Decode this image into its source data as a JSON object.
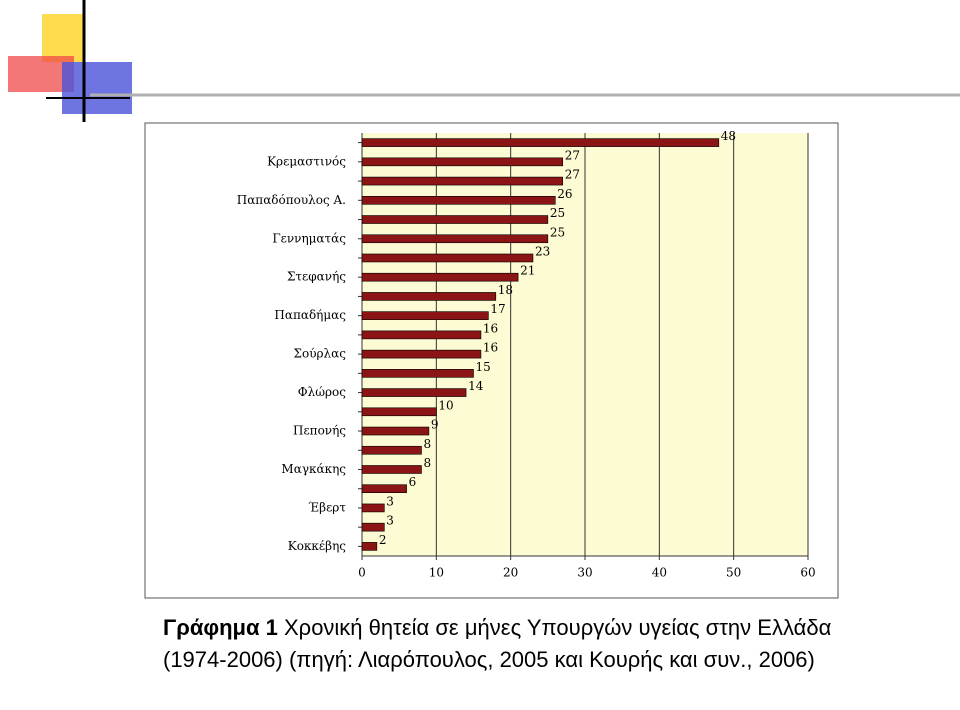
{
  "chart_data": {
    "type": "bar",
    "orientation": "horizontal",
    "categories": [
      null,
      "Κρεμαστινός",
      null,
      "Παπαδόπουλος Α.",
      null,
      "Γεννηματάς",
      null,
      "Στεφανής",
      null,
      "Παπαδήμας",
      null,
      "Σούρλας",
      null,
      "Φλώρος",
      null,
      "Πεπονής",
      null,
      "Μαγκάκης",
      null,
      "Έβερτ",
      null,
      "Κοκκέβης"
    ],
    "values": [
      48,
      27,
      27,
      26,
      25,
      25,
      23,
      21,
      18,
      17,
      16,
      16,
      15,
      14,
      10,
      9,
      8,
      8,
      6,
      3,
      3,
      2
    ],
    "color": "#8b1414",
    "xlim": [
      0,
      60
    ],
    "xticks": [
      0,
      10,
      20,
      30,
      40,
      50,
      60
    ],
    "grid": true
  },
  "caption_label": "Γράφημα 1",
  "caption_text": "Χρονική θητεία σε μήνες Υπουργών υγείας στην Ελλάδα (1974-2006) (πηγή: Λιαρόπουλος, 2005 και Κουρής και συν., 2006)"
}
